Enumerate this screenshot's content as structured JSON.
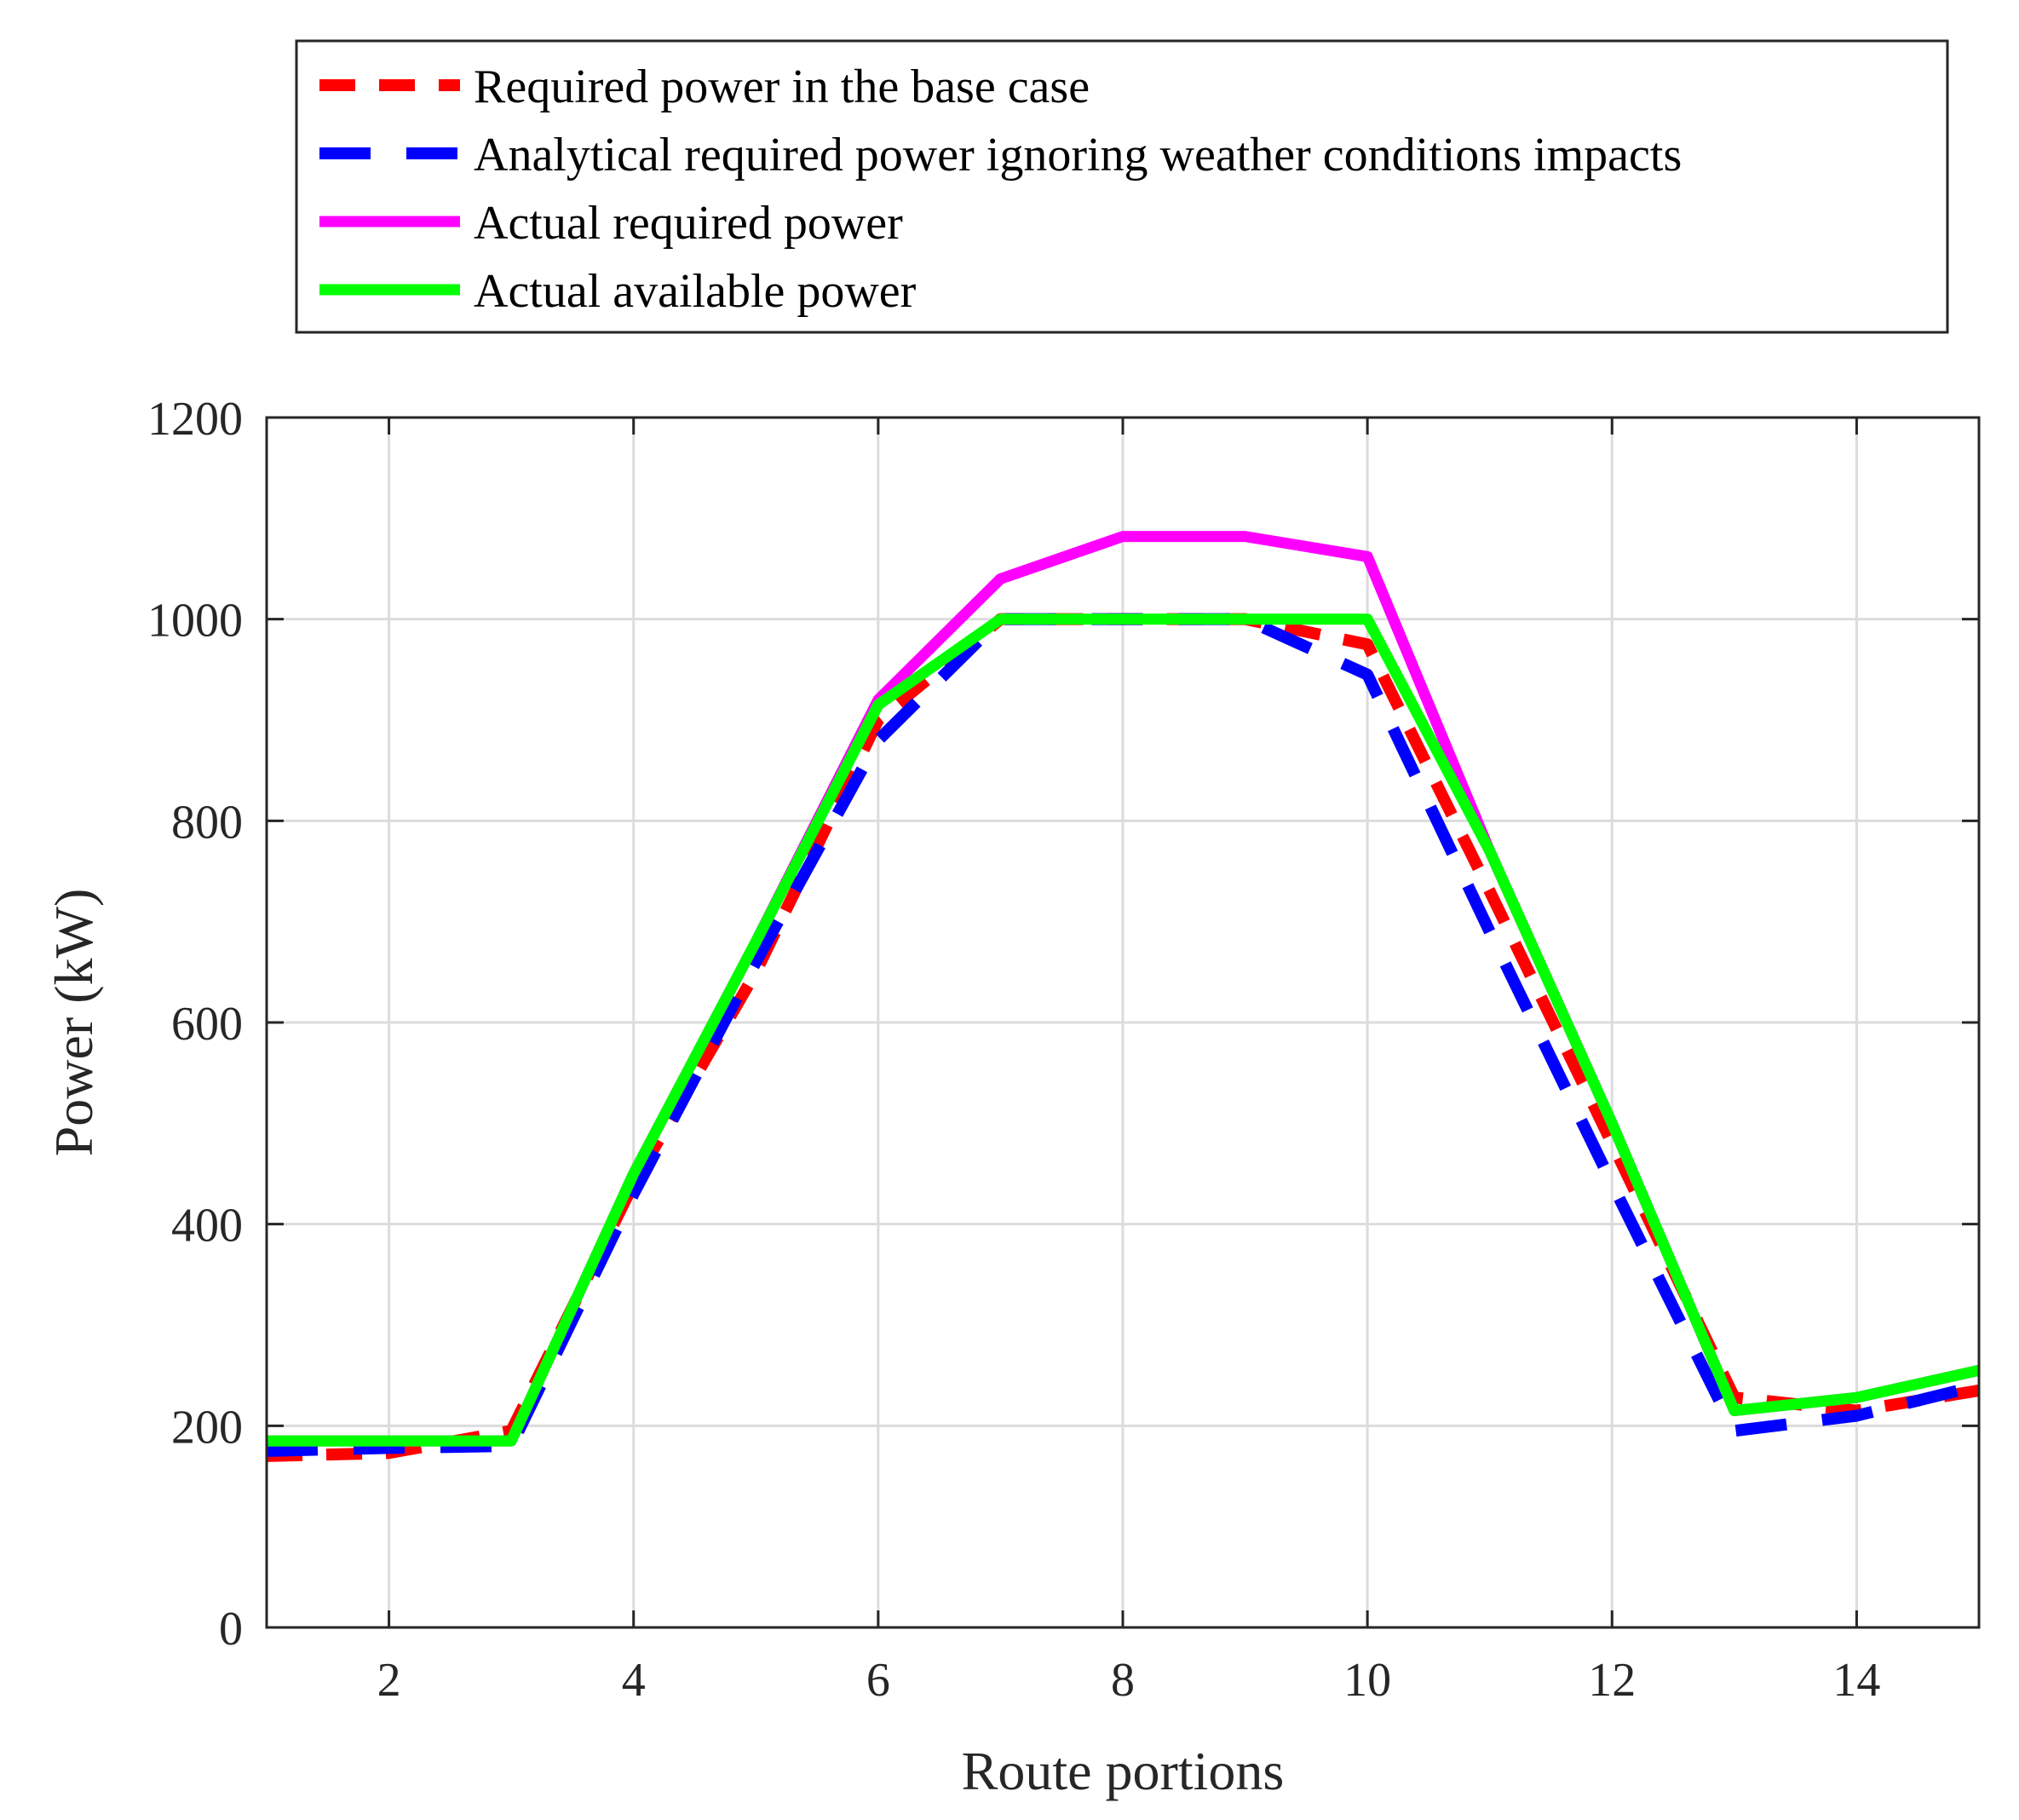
{
  "chart_data": {
    "type": "line",
    "title": "",
    "xlabel": "Route portions",
    "ylabel": "Power (kW)",
    "xlim": [
      1,
      15
    ],
    "ylim": [
      0,
      1200
    ],
    "xticks": [
      2,
      4,
      6,
      8,
      10,
      12,
      14
    ],
    "yticks": [
      0,
      200,
      400,
      600,
      800,
      1000,
      1200
    ],
    "grid": true,
    "legend_position": "top (above axes)",
    "x": [
      1,
      2,
      3,
      4,
      5,
      6,
      7,
      8,
      9,
      10,
      11,
      12,
      13,
      14,
      15
    ],
    "series": [
      {
        "name": "Required power in the base case",
        "color": "#ff0000",
        "style": "dashed",
        "values": [
          170,
          173,
          195,
          440,
          650,
          900,
          1000,
          1000,
          1000,
          975,
          730,
          480,
          228,
          215,
          235
        ]
      },
      {
        "name": "Analytical required power ignoring weather conditions impacts",
        "color": "#0000ff",
        "style": "dashed",
        "values": [
          175,
          178,
          180,
          430,
          660,
          880,
          1000,
          1000,
          1000,
          945,
          690,
          440,
          195,
          210,
          240
        ]
      },
      {
        "name": "Actual required power",
        "color": "#ff00ff",
        "style": "solid",
        "values": [
          185,
          185,
          185,
          450,
          680,
          920,
          1040,
          1082,
          1082,
          1062,
          770,
          500,
          215,
          228,
          255
        ]
      },
      {
        "name": "Actual available power",
        "color": "#00ff00",
        "style": "solid",
        "values": [
          185,
          185,
          185,
          450,
          680,
          915,
          1000,
          1000,
          1000,
          1000,
          770,
          500,
          215,
          228,
          255
        ]
      }
    ]
  }
}
